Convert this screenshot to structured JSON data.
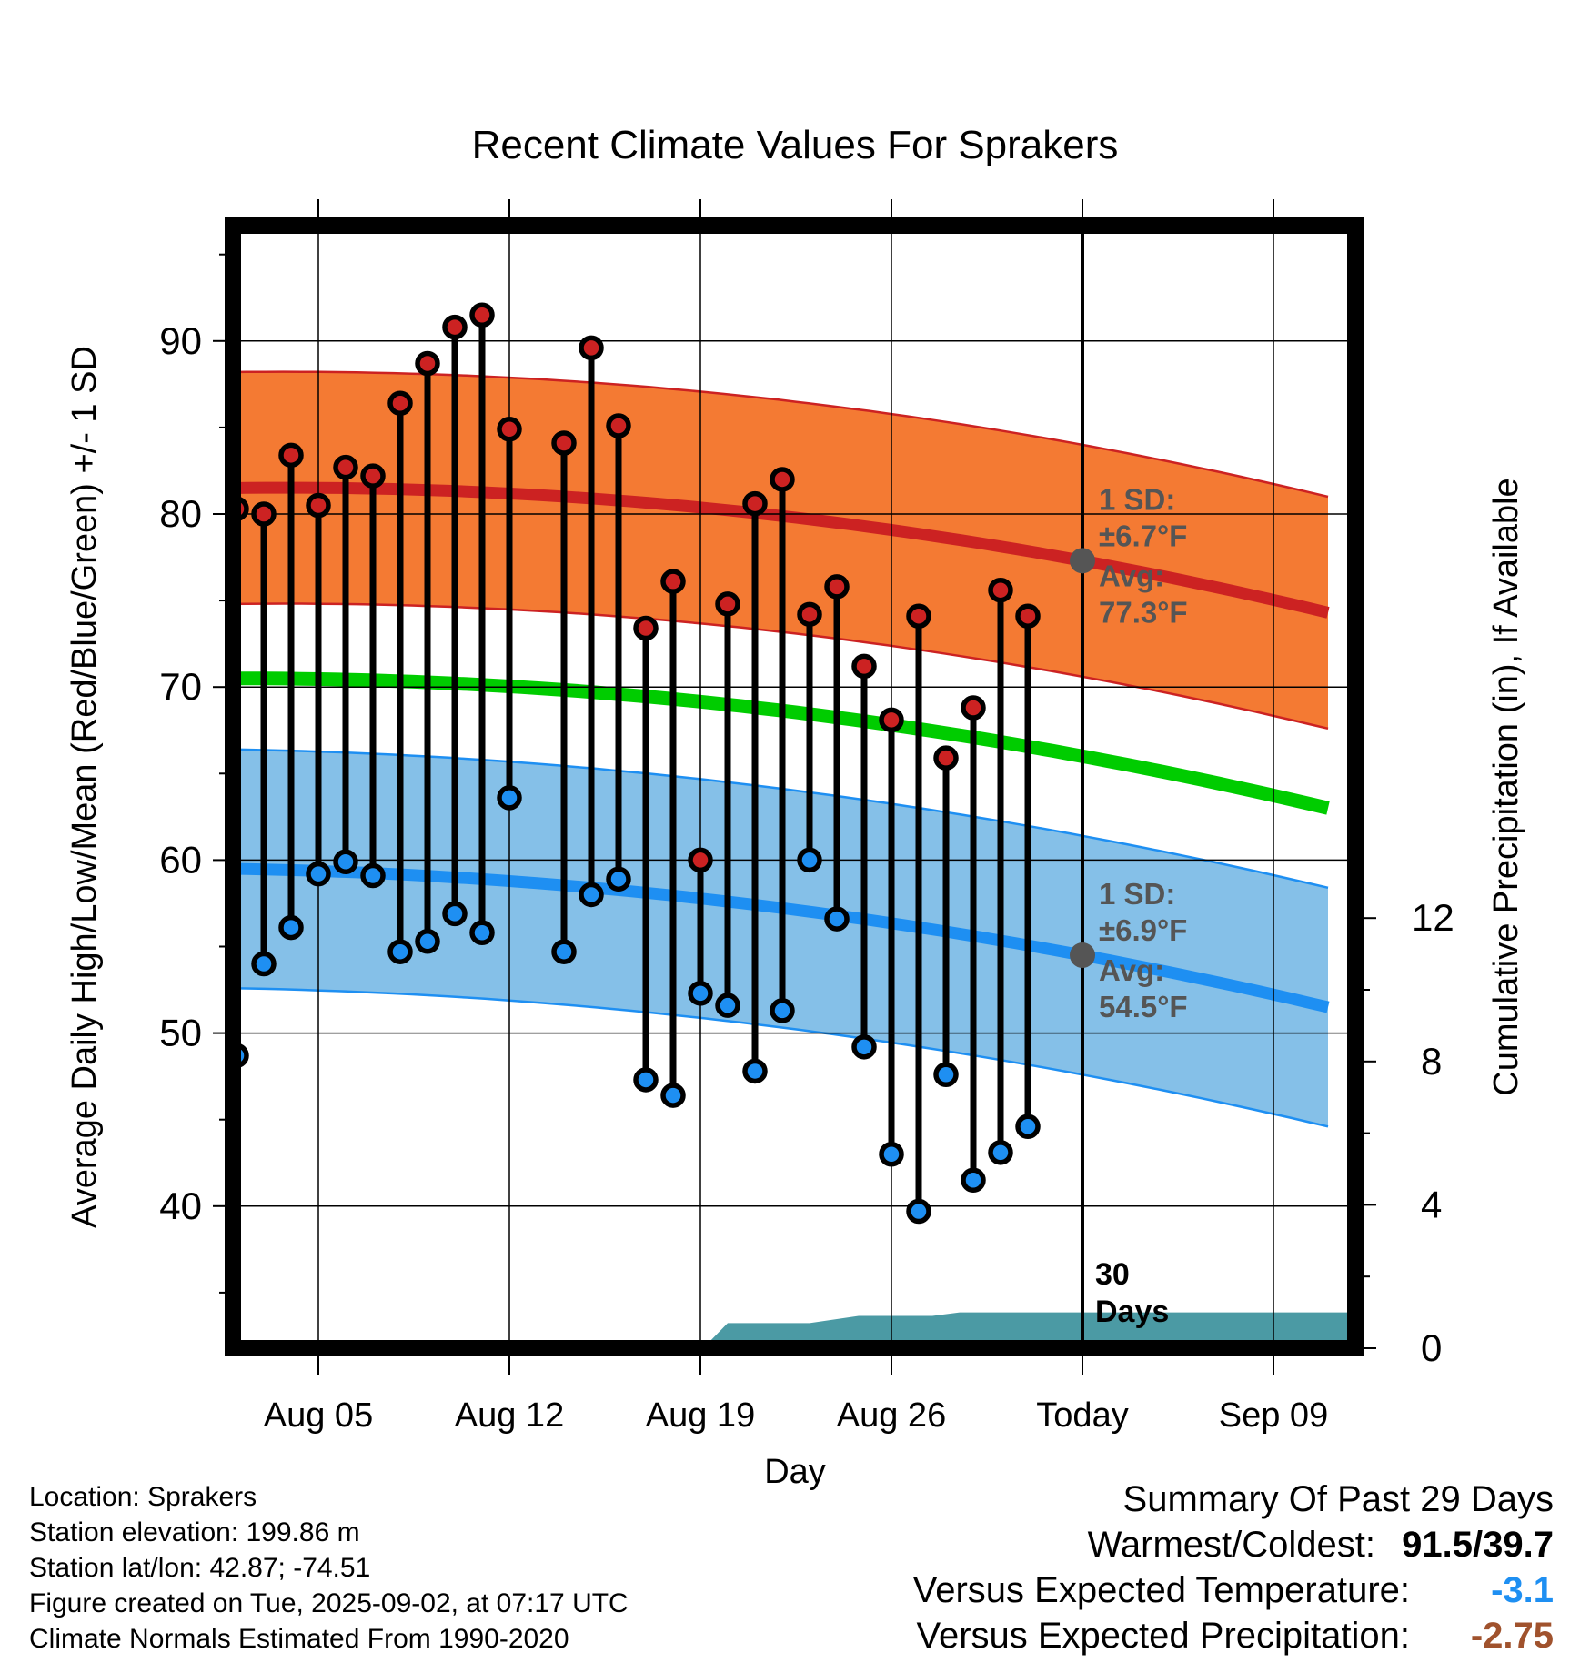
{
  "chart_data": {
    "type": "line",
    "title": "Recent Climate Values For Sprakers",
    "xlabel": "Day",
    "ylabel": "Average Daily High/Low/Mean (Red/Blue/Green) +/- 1 SD",
    "y2label": "Cumulative Precipitation (in), If Available",
    "ylim": [
      32,
      97
    ],
    "y2lim": [
      0,
      30.8
    ],
    "yticks": [
      40,
      50,
      60,
      70,
      80,
      90
    ],
    "y2ticks": [
      0,
      4,
      8,
      12
    ],
    "xticks": [
      {
        "day": 4,
        "label": "Aug 05"
      },
      {
        "day": 11,
        "label": "Aug 12"
      },
      {
        "day": 18,
        "label": "Aug 19"
      },
      {
        "day": 25,
        "label": "Aug 26"
      },
      {
        "day": 32,
        "label": "Today"
      },
      {
        "day": 39,
        "label": "Sep 09"
      }
    ],
    "xlim": [
      0.7,
      41.0
    ],
    "today_day": 32,
    "today_label": "30 Days",
    "highs": [
      80.3,
      80.0,
      83.4,
      80.5,
      82.7,
      82.2,
      86.4,
      88.7,
      90.8,
      91.5,
      84.9,
      null,
      84.1,
      89.6,
      85.1,
      73.4,
      76.1,
      60.0,
      74.8,
      80.6,
      82.0,
      74.2,
      75.8,
      71.2,
      68.1,
      74.1,
      65.9,
      68.8,
      75.6,
      74.1
    ],
    "lows": [
      48.7,
      54.0,
      56.1,
      59.2,
      59.9,
      59.1,
      54.7,
      55.3,
      56.9,
      55.8,
      63.6,
      null,
      54.7,
      58.0,
      58.9,
      47.3,
      46.4,
      52.3,
      51.6,
      47.8,
      51.3,
      60.0,
      56.6,
      49.2,
      43.0,
      39.7,
      47.6,
      41.5,
      43.1,
      44.6
    ],
    "normal_high": {
      "start": 81.5,
      "today": 77.3,
      "end": 74.3,
      "sd_label": "1 SD:",
      "sd_value": "±6.7°F",
      "avg_label": "Avg:",
      "avg_value": "77.3°F"
    },
    "normal_low": {
      "start": 59.5,
      "today": 54.5,
      "end": 51.5,
      "sd_label": "1 SD:",
      "sd_value": "±6.9°F",
      "avg_label": "Avg:",
      "avg_value": "54.5°F"
    },
    "normal_mean": {
      "start": 70.5,
      "today": 66.0,
      "end": 63.0
    },
    "sd_high": 6.7,
    "sd_low": 6.9,
    "precip_cumulative": [
      {
        "day": 18.1,
        "value": 0.0
      },
      {
        "day": 19.0,
        "value": 0.7
      },
      {
        "day": 22.0,
        "value": 0.7
      },
      {
        "day": 23.8,
        "value": 0.9
      },
      {
        "day": 26.5,
        "value": 0.9
      },
      {
        "day": 27.5,
        "value": 1.0
      },
      {
        "day": 31.0,
        "value": 1.0
      },
      {
        "day": 32.0,
        "value": 1.0
      }
    ],
    "colors": {
      "high_band": "#f47a33",
      "high_line": "#cc2222",
      "low_band": "#85c0e8",
      "low_line": "#1e8ff2",
      "mean_line": "#00cc00",
      "precip": "#4b9aa4",
      "high_marker": "#cc2222",
      "low_marker": "#1e8ff2",
      "today_marker": "#555555",
      "annotation": "#555555"
    }
  },
  "info": {
    "location": "Location: Sprakers",
    "elevation": "Station elevation: 199.86 m",
    "latlon": "Station lat/lon: 42.87; -74.51",
    "created": "Figure created on Tue, 2025-09-02, at 07:17 UTC",
    "normals": "Climate Normals Estimated From 1990-2020"
  },
  "summary": {
    "heading": "Summary Of Past 29 Days",
    "warm_label": "Warmest/Coldest:",
    "warm_value": "91.5/39.7",
    "temp_label": "Versus Expected Temperature:",
    "temp_value": "-3.1",
    "temp_color": "#1e8ff2",
    "precip_label": "Versus Expected Precipitation:",
    "precip_value": "-2.75",
    "precip_color": "#a0522d"
  }
}
